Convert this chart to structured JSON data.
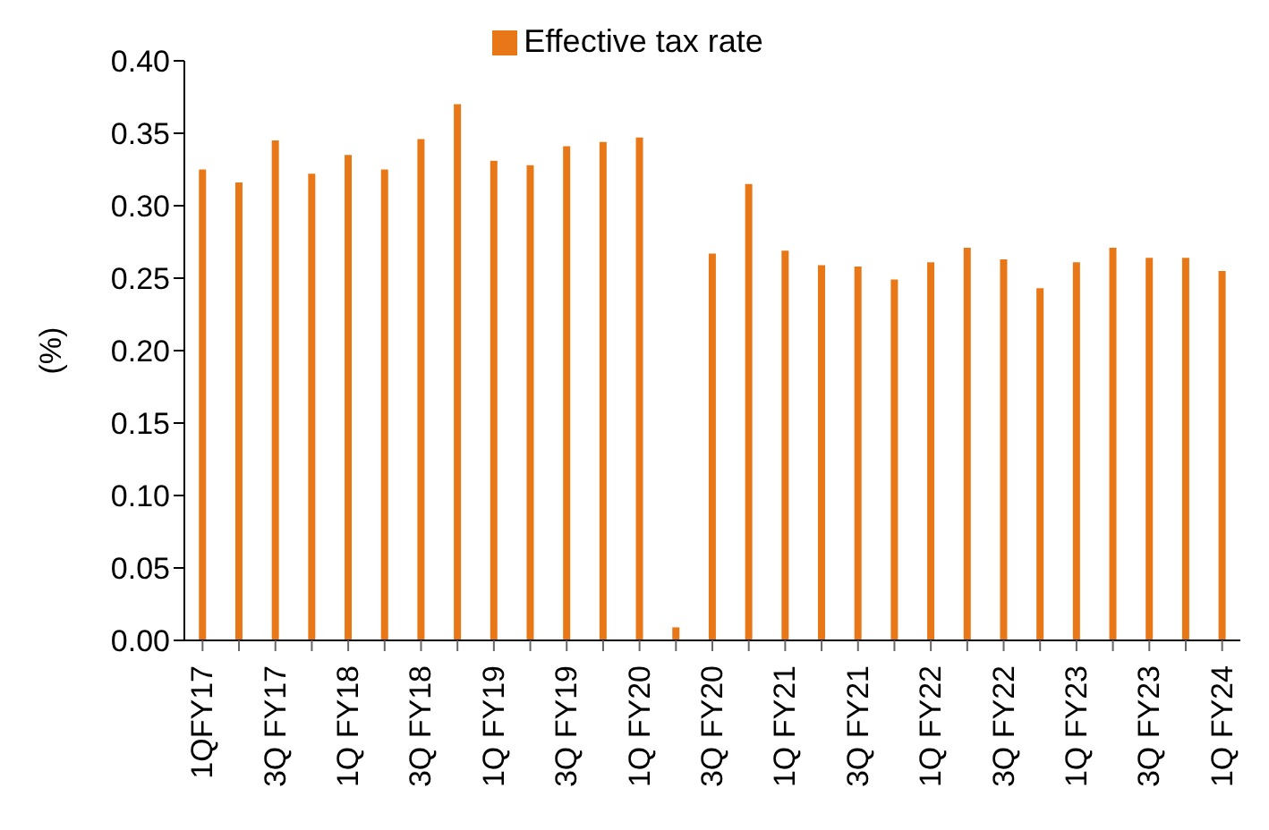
{
  "chart_data": {
    "type": "bar",
    "ylabel": "(%)",
    "legend": "top",
    "categories": [
      "1QFY17",
      null,
      "3Q FY17",
      null,
      "1Q FY18",
      null,
      "3Q FY18",
      null,
      "1Q FY19",
      null,
      "3Q FY19",
      null,
      "1Q FY20",
      null,
      "3Q FY20",
      null,
      "1Q FY21",
      null,
      "3Q FY21",
      null,
      "1Q FY22",
      null,
      "3Q FY22",
      null,
      "1Q FY23",
      null,
      "3Q FY23",
      null,
      "1Q FY24"
    ],
    "series": [
      {
        "name": "Effective tax rate",
        "color": "#e87817",
        "values": [
          0.325,
          0.316,
          0.345,
          0.322,
          0.335,
          0.325,
          0.346,
          0.37,
          0.331,
          0.328,
          0.341,
          0.344,
          0.347,
          0.009,
          0.267,
          0.315,
          0.269,
          0.259,
          0.258,
          0.249,
          0.261,
          0.271,
          0.263,
          0.243,
          0.261,
          0.271,
          0.264,
          0.264,
          0.255
        ]
      }
    ],
    "ylim": [
      0,
      0.4
    ],
    "yticks": [
      {
        "value": 0,
        "label": "0.00"
      },
      {
        "value": 0.05,
        "label": "0.05"
      },
      {
        "value": 0.1,
        "label": "0.10"
      },
      {
        "value": 0.15,
        "label": "0.15"
      },
      {
        "value": 0.2,
        "label": "0.20"
      },
      {
        "value": 0.25,
        "label": "0.25"
      },
      {
        "value": 0.3,
        "label": "0.30"
      },
      {
        "value": 0.35,
        "label": "0.35"
      },
      {
        "value": 0.4,
        "label": "0.40"
      }
    ]
  }
}
